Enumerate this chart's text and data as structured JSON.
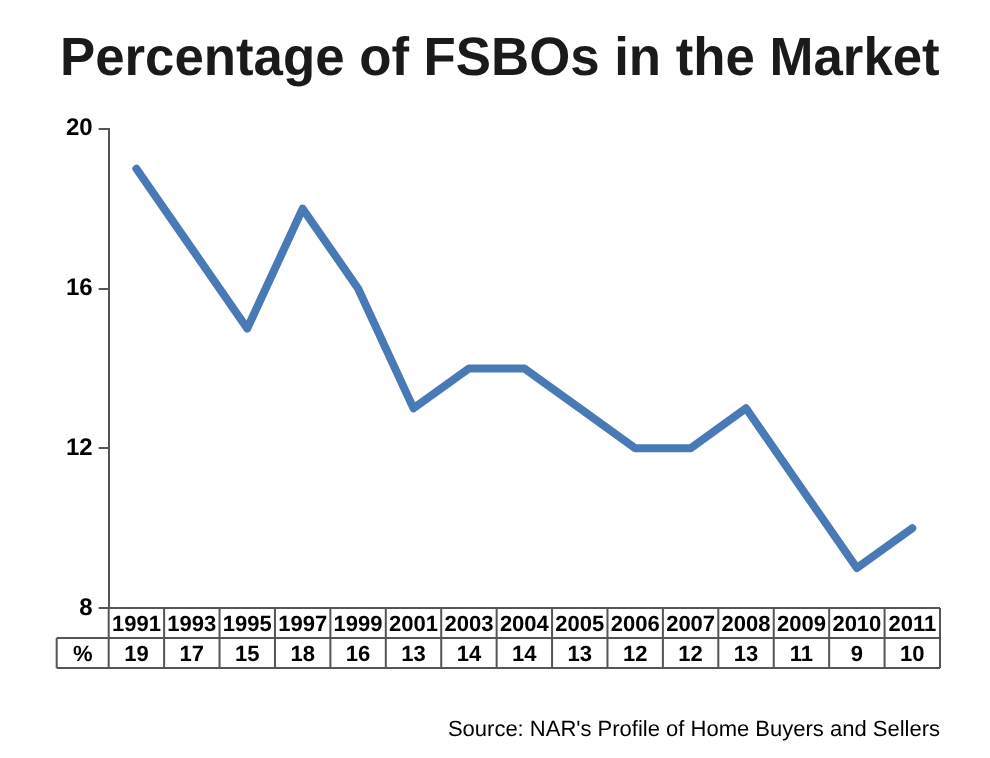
{
  "chart_data": {
    "type": "line",
    "title": "Percentage of FSBOs in the Market",
    "categories": [
      "1991",
      "1993",
      "1995",
      "1997",
      "1999",
      "2001",
      "2003",
      "2004",
      "2005",
      "2006",
      "2007",
      "2008",
      "2009",
      "2010",
      "2011"
    ],
    "series": [
      {
        "color": "#4a7ab5",
        "values": [
          19,
          17,
          15,
          18,
          16,
          13,
          14,
          14,
          13,
          12,
          12,
          13,
          11,
          9,
          10
        ]
      }
    ],
    "ylabel": "%",
    "ylim": [
      8,
      20
    ],
    "yticks": [
      8,
      12,
      16,
      20
    ],
    "grid": false,
    "legend": false,
    "marker": "none",
    "line_style": "solid",
    "data_labels": true,
    "annotations": [
      "Source: NAR's Profile of Home Buyers and Sellers"
    ]
  }
}
